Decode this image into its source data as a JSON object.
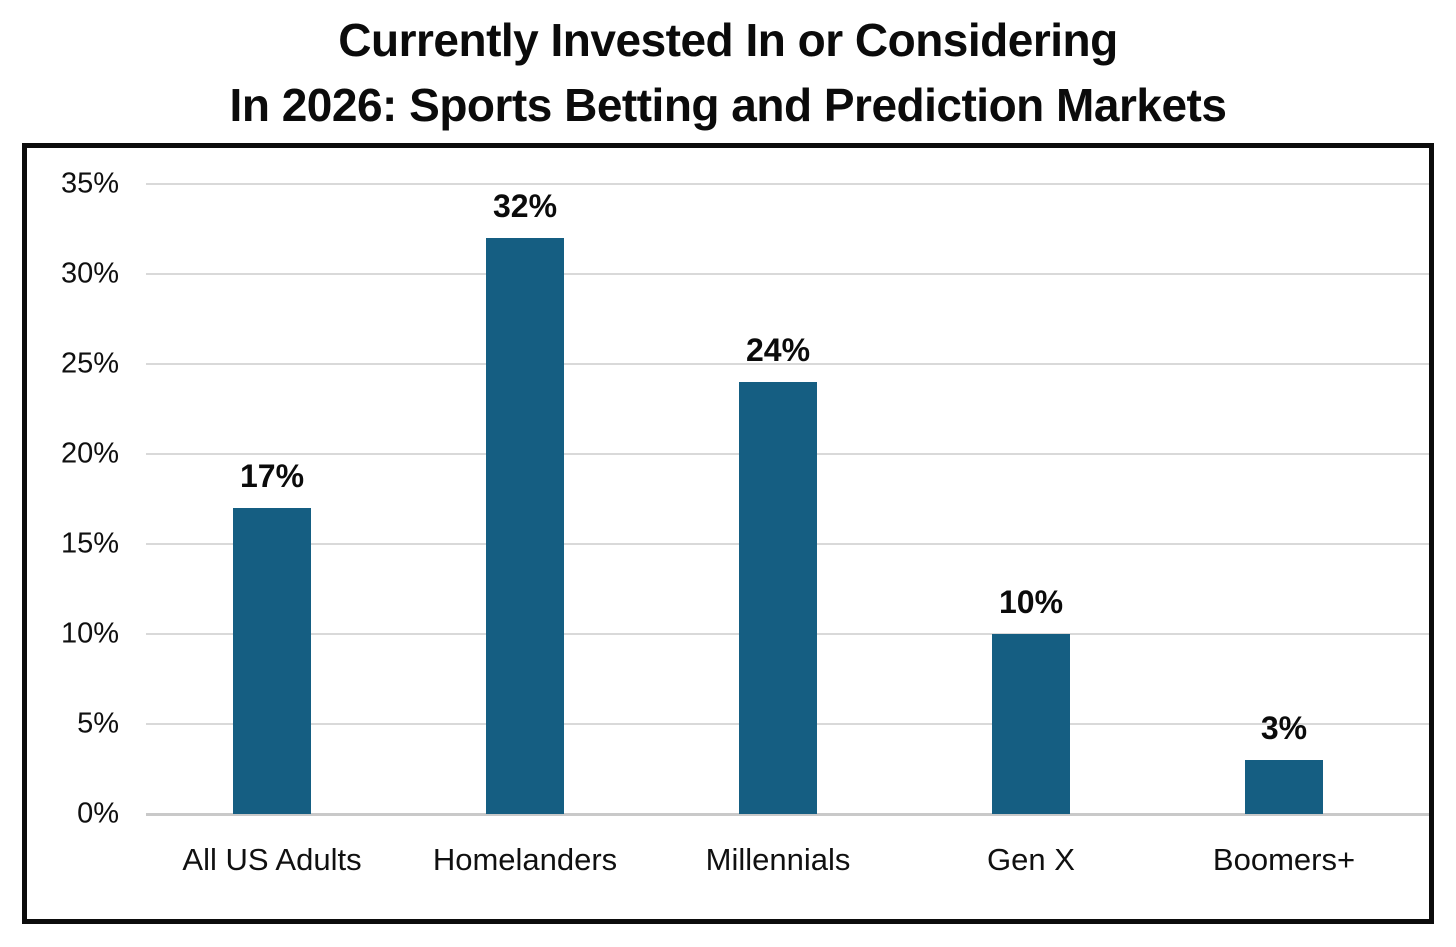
{
  "title": {
    "line1": "Currently Invested In or Considering",
    "line2": "In 2026: Sports Betting and Prediction Markets"
  },
  "chart_data": {
    "type": "bar",
    "title": "Currently Invested In or Considering In 2026: Sports Betting and Prediction Markets",
    "categories": [
      "All US Adults",
      "Homelanders",
      "Millennials",
      "Gen X",
      "Boomers+"
    ],
    "values": [
      17,
      32,
      24,
      10,
      3
    ],
    "value_labels": [
      "17%",
      "32%",
      "24%",
      "10%",
      "3%"
    ],
    "xlabel": "",
    "ylabel": "",
    "ylim": [
      0,
      35
    ],
    "yticks": [
      "35%",
      "30%",
      "25%",
      "20%",
      "15%",
      "10%",
      "5%",
      "0%"
    ],
    "grid": "horizontal",
    "legend_position": "none",
    "bar_color": "#155e82",
    "gridline_color": "#d9d9d9",
    "frame_border_color": "#0c0c0c",
    "text_color": "#0b0b0b"
  }
}
